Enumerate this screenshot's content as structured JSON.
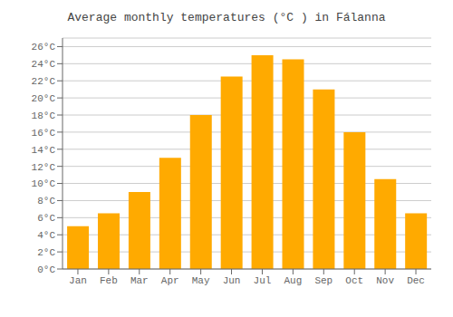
{
  "chart_data": {
    "type": "bar",
    "title": "Average monthly temperatures (°C ) in Fálanna",
    "categories": [
      "Jan",
      "Feb",
      "Mar",
      "Apr",
      "May",
      "Jun",
      "Jul",
      "Aug",
      "Sep",
      "Oct",
      "Nov",
      "Dec"
    ],
    "values": [
      5.0,
      6.5,
      9.0,
      13.0,
      18.0,
      22.5,
      25.0,
      24.5,
      21.0,
      16.0,
      10.5,
      6.5
    ],
    "color": "#FFAA00",
    "ylim": [
      0,
      27
    ],
    "yticks": [
      {
        "value": 0,
        "label": "0°C"
      },
      {
        "value": 2,
        "label": "2°C"
      },
      {
        "value": 4,
        "label": "4°C"
      },
      {
        "value": 6,
        "label": "6°C"
      },
      {
        "value": 8,
        "label": "8°C"
      },
      {
        "value": 10,
        "label": "10°C"
      },
      {
        "value": 12,
        "label": "12°C"
      },
      {
        "value": 14,
        "label": "14°C"
      },
      {
        "value": 16,
        "label": "16°C"
      },
      {
        "value": 18,
        "label": "18°C"
      },
      {
        "value": 20,
        "label": "20°C"
      },
      {
        "value": 22,
        "label": "22°C"
      },
      {
        "value": 24,
        "label": "24°C"
      },
      {
        "value": 26,
        "label": "26°C"
      }
    ],
    "grid": true
  }
}
